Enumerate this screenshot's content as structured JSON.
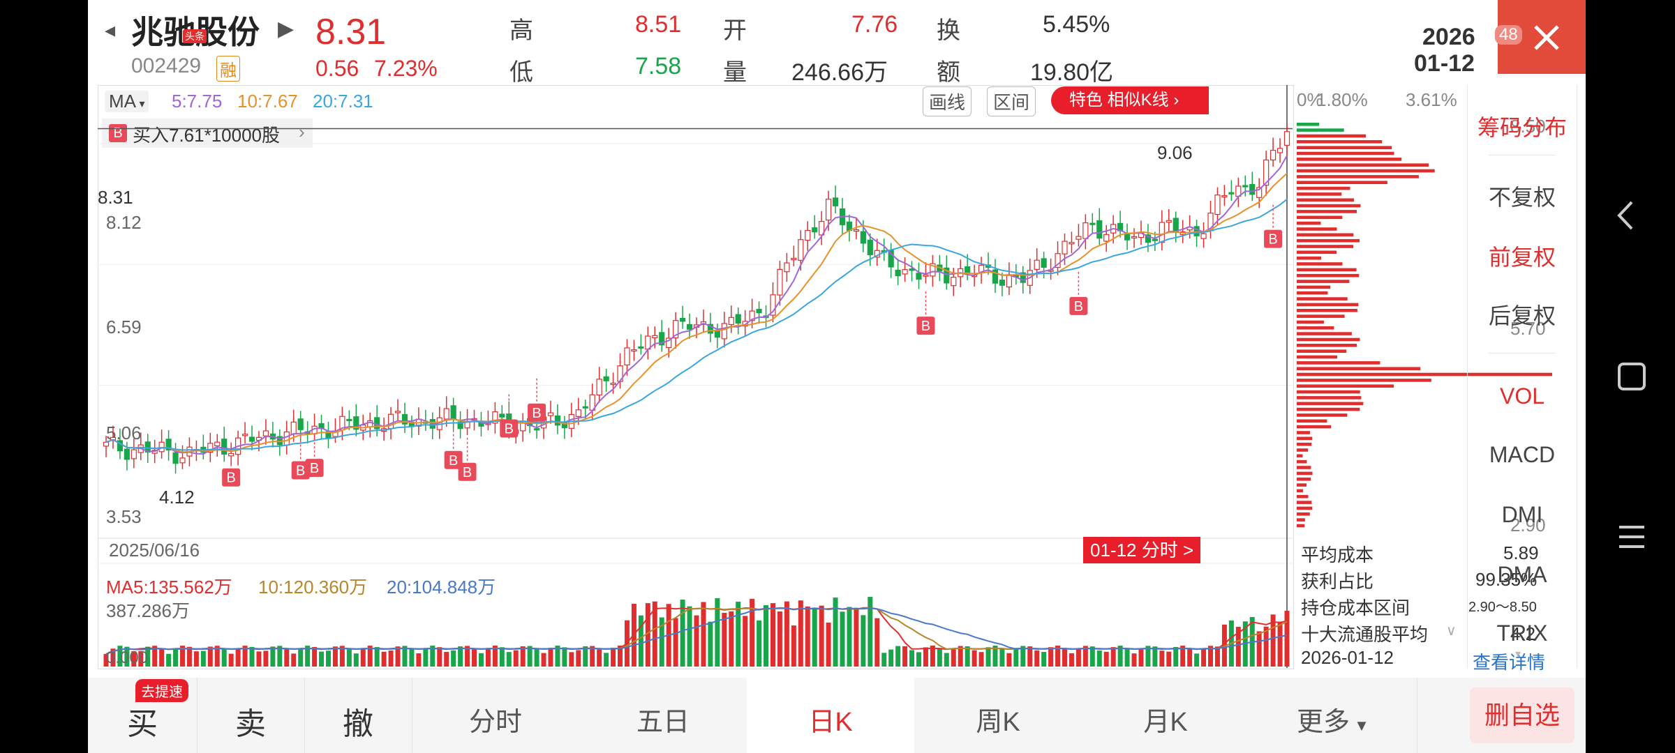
{
  "stock": {
    "name": "兆驰股份",
    "badge": "头条",
    "code": "002429",
    "margin_tag": "融",
    "price": "8.31",
    "change": "0.56",
    "change_pct": "7.23%"
  },
  "quote": {
    "high_label": "高",
    "high": "8.51",
    "open_label": "开",
    "open": "7.76",
    "turnover_label": "换",
    "turnover": "5.45%",
    "low_label": "低",
    "low": "7.58",
    "volume_label": "量",
    "volume": "246.66万",
    "amount_label": "额",
    "amount": "19.80亿"
  },
  "date_box": {
    "year": "2026",
    "date": "01-12",
    "badge": "48"
  },
  "toolbar": {
    "ma_label": "MA",
    "ma5": "5:7.75",
    "ma10": "10:7.67",
    "ma20": "20:7.31",
    "draw_btn": "画线",
    "range_btn": "区间",
    "feature_btn": "特色  相似K线 ›"
  },
  "trade_note": {
    "badge": "B",
    "text": "买入7.61*10000股"
  },
  "price_axis": {
    "current": "8.31",
    "labels": [
      "8.12",
      "6.59",
      "5.06",
      "3.53"
    ],
    "max_mark": "9.06",
    "min_mark": "4.12"
  },
  "start_date": "2025/06/16",
  "intraday_btn": "01-12 分时 >",
  "volume_panel": {
    "ma5": "MA5:135.562万",
    "ma10": "10:120.360万",
    "ma20": "20:104.848万",
    "max": "387.286万",
    "zero": "0.000"
  },
  "chip_panel": {
    "pct_labels": [
      "0%",
      "1.80%",
      "3.61%"
    ],
    "price_labels": [
      "8.50",
      "5.70",
      "2.90"
    ],
    "avg_cost_label": "平均成本",
    "avg_cost": "5.89",
    "profit_label": "获利占比",
    "profit": "99.35%",
    "range_label": "持仓成本区间",
    "range": "2.90～8.50",
    "top10_label": "十大流通股平均",
    "top10": "4.2",
    "date": "2026-01-12",
    "detail_link": "查看详情"
  },
  "right_menu": [
    "筹码分布",
    "不复权",
    "前复权",
    "后复权",
    "VOL",
    "MACD",
    "DMI",
    "DMA",
    "TRIX"
  ],
  "bottom_tabs": [
    "买",
    "卖",
    "撤",
    "分时",
    "五日",
    "日K",
    "周K",
    "月K",
    "更多"
  ],
  "speed_badge": "去提速",
  "remove_btn": "删自选",
  "colors": {
    "up": "#e02e2e",
    "down": "#19a64a",
    "ma5": "#a066d8",
    "ma10": "#e8902a",
    "ma20": "#3aa6e0"
  },
  "chart_data": {
    "type": "candlestick",
    "x_range": [
      "2025/06/16",
      "2026-01-12"
    ],
    "last_close": 8.31,
    "y_ticks": [
      3.53,
      5.06,
      6.59,
      8.12
    ],
    "high_mark": 9.06,
    "low_mark": 4.12,
    "ma": {
      "ma5": 7.75,
      "ma10": 7.67,
      "ma20": 7.31
    }
  }
}
